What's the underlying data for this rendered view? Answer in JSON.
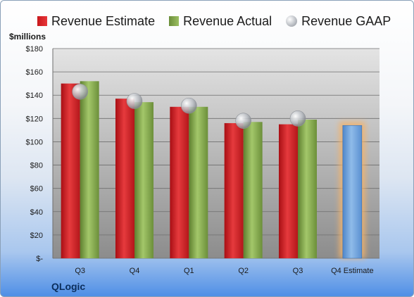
{
  "legend": {
    "estimate": "Revenue Estimate",
    "actual": "Revenue Actual",
    "gaap": "Revenue GAAP"
  },
  "unit_label": "$millions",
  "company": "QLogic",
  "colors": {
    "estimate": "#d42a2e",
    "actual": "#8db356",
    "gaap": "#c0c4ca",
    "forecast": "#6fa3dc",
    "forecast_glow": "#f4b36a"
  },
  "chart_data": {
    "type": "bar",
    "categories": [
      "Q3",
      "Q4",
      "Q1",
      "Q2",
      "Q3",
      "Q4 Estimate"
    ],
    "ylim": [
      0,
      180
    ],
    "yticks": [
      0,
      20,
      40,
      60,
      80,
      100,
      120,
      140,
      160,
      180
    ],
    "ytick_labels": [
      "$-",
      "$20",
      "$40",
      "$60",
      "$80",
      "$100",
      "$120",
      "$140",
      "$160",
      "$180"
    ],
    "grid": true,
    "legend_position": "top",
    "series": [
      {
        "name": "Revenue Estimate",
        "values": [
          150,
          137,
          130,
          116,
          115,
          null
        ]
      },
      {
        "name": "Revenue Actual",
        "values": [
          152,
          134,
          130,
          117,
          119,
          null
        ]
      },
      {
        "name": "Revenue GAAP",
        "values": [
          143,
          135,
          131,
          118,
          120,
          null
        ]
      },
      {
        "values": [
          null,
          null,
          null,
          null,
          null,
          114
        ]
      }
    ]
  }
}
